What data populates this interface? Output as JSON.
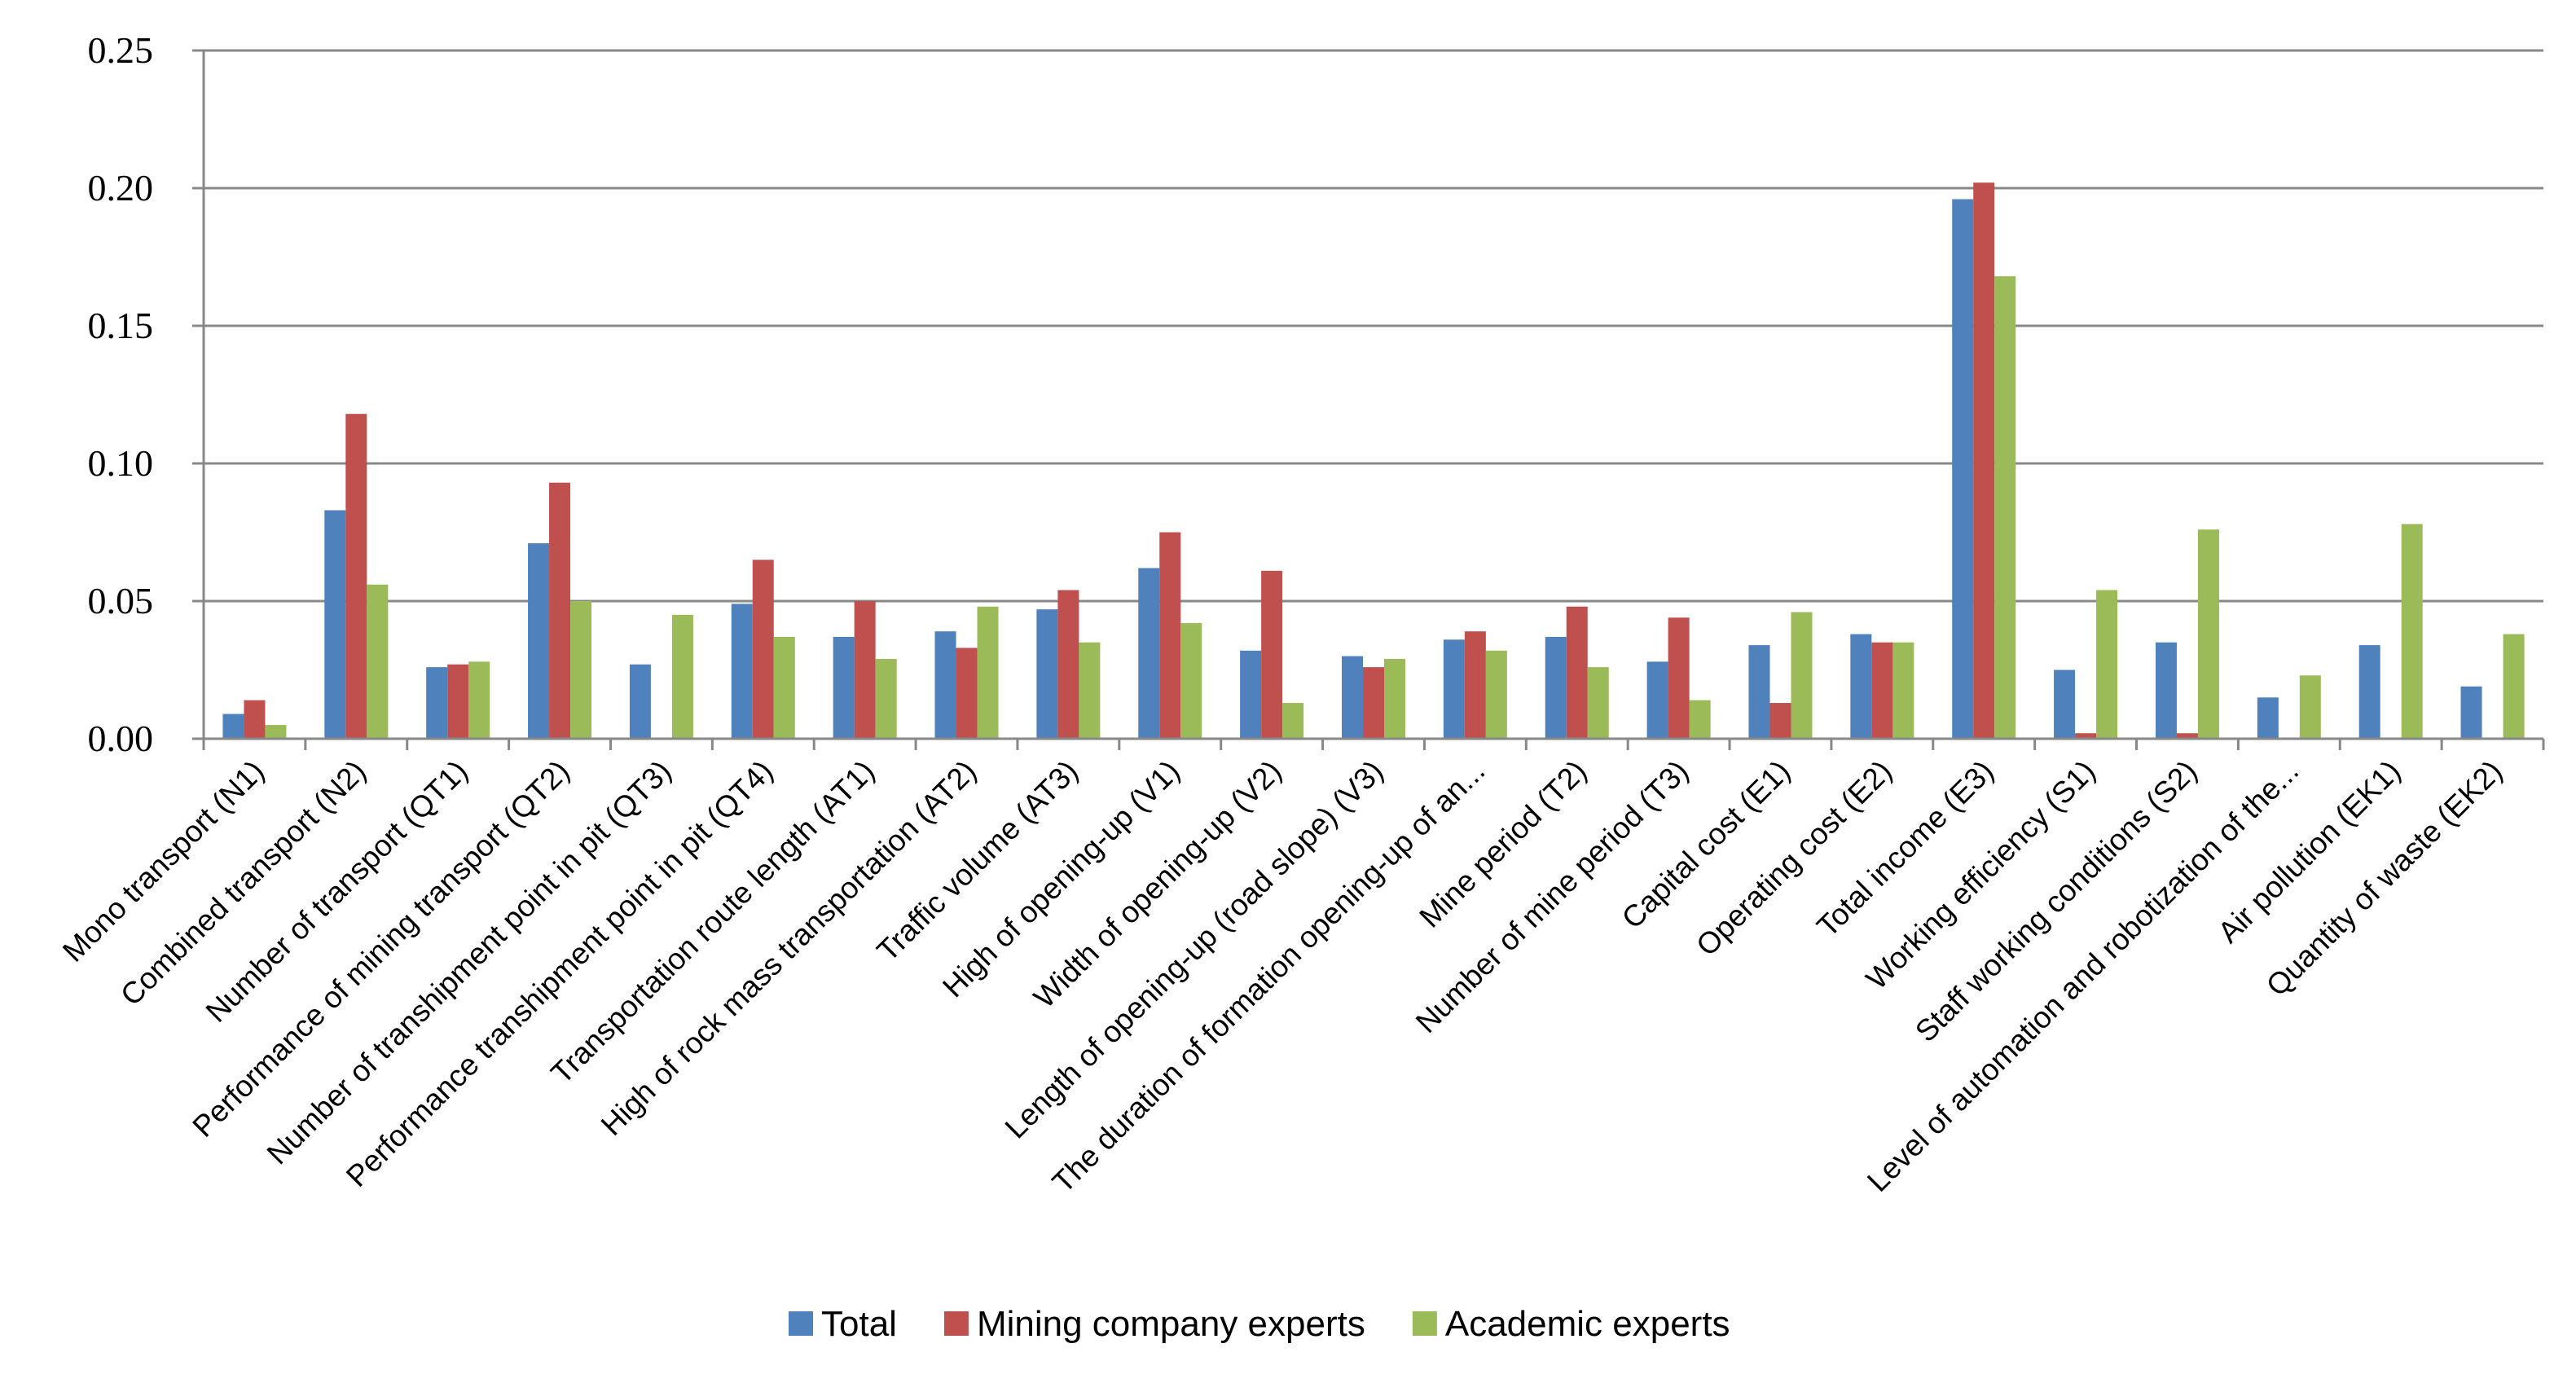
{
  "chart_data": {
    "type": "bar",
    "title": "",
    "xlabel": "",
    "ylabel": "",
    "ylim": [
      0,
      0.25
    ],
    "yticks": [
      "0.00",
      "0.05",
      "0.10",
      "0.15",
      "0.20",
      "0.25"
    ],
    "grid": true,
    "legend_position": "bottom",
    "categories": [
      "Mono transport (N1)",
      "Combined transport (N2)",
      "Number of transport (QT1)",
      "Performance of mining transport (QT2)",
      "Number of transhipment point in pit (QT3)",
      "Performance transhipment point in pit (QT4)",
      "Transportation route length (AT1)",
      "High of rock mass transportation (AT2)",
      "Traffic volume (AT3)",
      "High of opening-up (V1)",
      "Width of opening-up (V2)",
      "Length of opening-up (road slope) (V3)",
      "The duration of formation opening-up of an...",
      "Mine period (T2)",
      "Number of mine period (T3)",
      "Capital cost (E1)",
      "Operating cost (E2)",
      "Total income (E3)",
      "Working efficiency (S1)",
      "Staff working conditions (S2)",
      "Level of automation and robotization of the...",
      "Air pollution (EK1)",
      "Quantity of waste (EK2)"
    ],
    "series": [
      {
        "name": "Total",
        "color": "#4f81bd",
        "values": [
          0.009,
          0.083,
          0.026,
          0.071,
          0.027,
          0.049,
          0.037,
          0.039,
          0.047,
          0.062,
          0.032,
          0.03,
          0.036,
          0.037,
          0.028,
          0.034,
          0.038,
          0.196,
          0.025,
          0.035,
          0.015,
          0.034,
          0.019
        ]
      },
      {
        "name": "Mining company experts",
        "color": "#c0504d",
        "values": [
          0.014,
          0.118,
          0.027,
          0.093,
          0.0,
          0.065,
          0.05,
          0.033,
          0.054,
          0.075,
          0.061,
          0.026,
          0.039,
          0.048,
          0.044,
          0.013,
          0.035,
          0.202,
          0.002,
          0.002,
          0.0,
          0.0,
          0.0
        ]
      },
      {
        "name": "Academic experts",
        "color": "#9bbb59",
        "values": [
          0.005,
          0.056,
          0.028,
          0.05,
          0.045,
          0.037,
          0.029,
          0.048,
          0.035,
          0.042,
          0.013,
          0.029,
          0.032,
          0.026,
          0.014,
          0.046,
          0.035,
          0.168,
          0.054,
          0.076,
          0.023,
          0.078,
          0.038
        ]
      }
    ]
  }
}
